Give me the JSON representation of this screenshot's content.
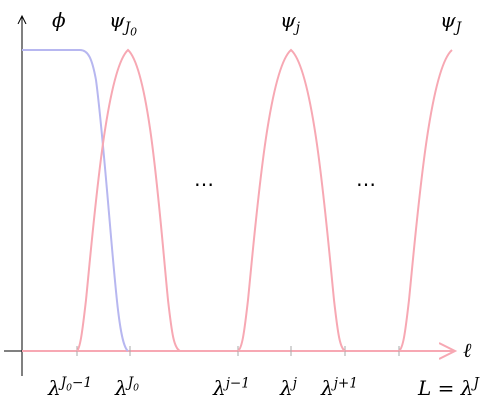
{
  "curves": {
    "phi": {
      "label": "ϕ",
      "color": "#b7b7f0"
    },
    "psi_J0": {
      "label": "ψ",
      "sub": "J",
      "subsub": "0",
      "color": "#f7a8b3"
    },
    "psi_j": {
      "label": "ψ",
      "sub": "j",
      "color": "#f7a8b3"
    },
    "psi_J": {
      "label": "ψ",
      "sub": "J",
      "color": "#f7a8b3"
    }
  },
  "ellipses": [
    "⋯",
    "⋯"
  ],
  "axis": {
    "x_label": "ℓ",
    "color": "#000000"
  },
  "ticks": [
    {
      "base": "λ",
      "sup": "J",
      "supsub": "0",
      "suffix": "−1"
    },
    {
      "base": "λ",
      "sup": "",
      "supsub": "",
      "sub": "J",
      "subsub": "0"
    },
    {
      "base": "λ",
      "sup": "j−1"
    },
    {
      "base": "λ",
      "sup": "j"
    },
    {
      "base": "λ",
      "sup": "j+1"
    },
    {
      "prefix": "L = ",
      "base": "λ",
      "sup": "J"
    }
  ]
}
